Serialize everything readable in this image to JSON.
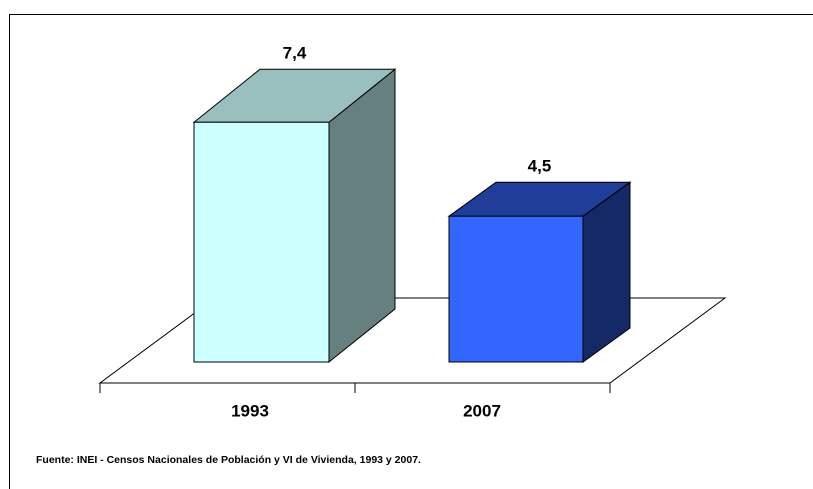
{
  "chart_data": {
    "type": "bar3d",
    "categories": [
      "1993",
      "2007"
    ],
    "values": [
      7.4,
      4.5
    ],
    "value_labels": [
      "7,4",
      "4,5"
    ],
    "colors": [
      "#ccffff",
      "#3366ff"
    ],
    "source": "Fuente: INEI - Censos Nacionales de Población y VI de Vivienda, 1993 y 2007."
  }
}
